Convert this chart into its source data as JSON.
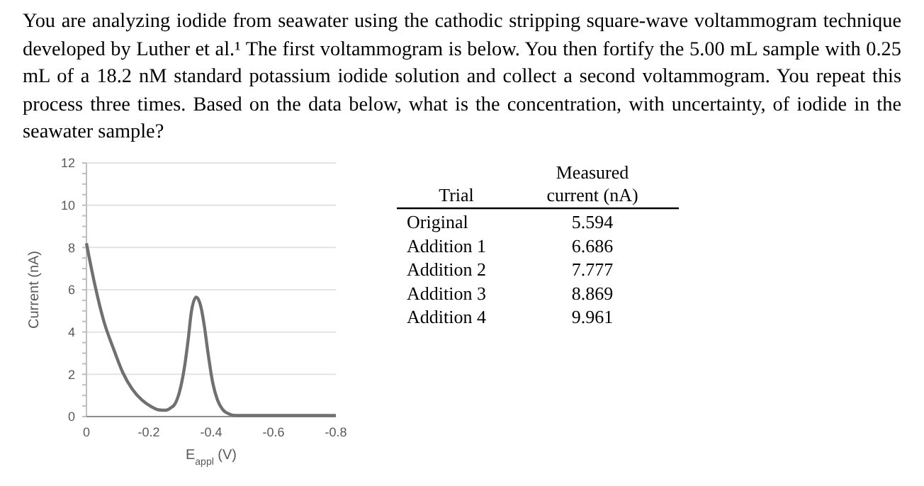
{
  "chart_data": [
    {
      "type": "line",
      "title": "You are analyzing iodide from seawater using the cathodic stripping square-wave voltammogram technique developed by Luther et al.¹ The first voltammogram is below. You then fortify the 5.00 mL sample with 0.25 mL of a 18.2 nM standard potassium iodide solution and collect a second voltammogram. You repeat this process three times. Based on the data below, what is the concentration, with uncertainty, of iodide in the seawater sample?",
      "xlabel": "E$_{appl}$ (V)",
      "ylabel": "Current (nA)",
      "x": [
        0,
        -0.026,
        -0.056,
        -0.087,
        -0.117,
        -0.147,
        -0.178,
        -0.208,
        -0.231,
        -0.254,
        -0.269,
        -0.284,
        -0.299,
        -0.314,
        -0.326,
        -0.337,
        -0.352,
        -0.367,
        -0.378,
        -0.39,
        -0.405,
        -0.42,
        -0.436,
        -0.458,
        -0.481,
        -0.8
      ],
      "series": [
        {
          "color": "#707070",
          "values": [
            8.2,
            6.3,
            4.5,
            3.2,
            2.07,
            1.3,
            0.78,
            0.47,
            0.32,
            0.3,
            0.4,
            0.6,
            1.2,
            2.3,
            3.6,
            5.0,
            5.65,
            5.2,
            4.3,
            3.0,
            1.6,
            0.8,
            0.35,
            0.12,
            0.05,
            0.05
          ]
        }
      ],
      "xlim": [
        0,
        -0.8
      ],
      "xticks": [
        0,
        -0.2,
        -0.4,
        -0.6,
        -0.8
      ],
      "ylim": [
        0,
        12
      ],
      "yticks": [
        0,
        2,
        4,
        6,
        8,
        10,
        12
      ],
      "grid": "y",
      "marker": "none",
      "line_style": "solid"
    },
    {
      "type": "other",
      "xlabel": "Trial",
      "ylabel": "Measured current (nA)",
      "categories": [
        "Original",
        "Addition 1",
        "Addition 2",
        "Addition 3",
        "Addition 4"
      ],
      "values": [
        5.594,
        6.686,
        7.777,
        8.869,
        9.961
      ],
      "data_labels": true
    }
  ]
}
